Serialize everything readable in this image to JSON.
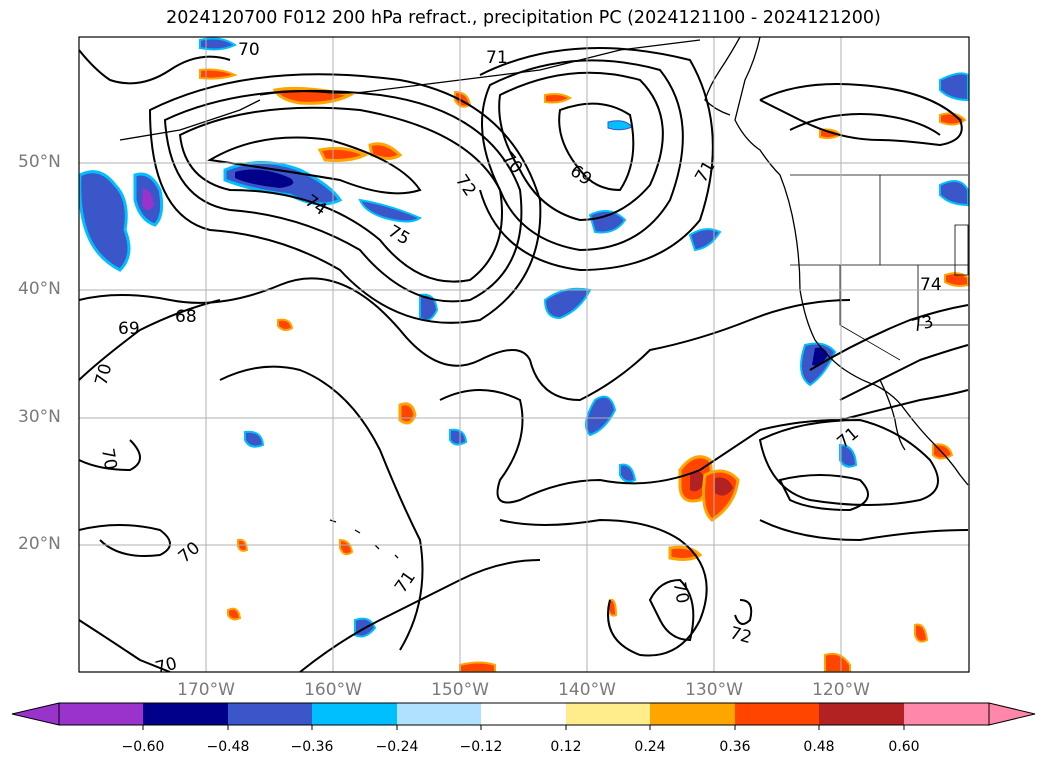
{
  "title": "2024120700 F012 200 hPa refract., precipitation PC (2024121100 - 2024121200)",
  "lat_labels": [
    "50°N",
    "40°N",
    "30°N",
    "20°N"
  ],
  "lon_labels": [
    "170°W",
    "160°W",
    "150°W",
    "140°W",
    "130°W",
    "120°W"
  ],
  "contour_labels": [
    "70",
    "71",
    "72",
    "70",
    "69",
    "71",
    "74",
    "75",
    "68",
    "69",
    "70",
    "70",
    "70",
    "71",
    "70",
    "72",
    "71",
    "74",
    "73",
    "70"
  ],
  "colorbar": {
    "colors": [
      "#9933cc",
      "#00008b",
      "#3a56c8",
      "#00bfff",
      "#b0e2ff",
      "#ffffff",
      "#ffec8b",
      "#ffa500",
      "#ff4500",
      "#b22222",
      "#ff88aa"
    ],
    "ticks": [
      "−0.60",
      "−0.48",
      "−0.36",
      "−0.24",
      "−0.12",
      "0.12",
      "0.24",
      "0.36",
      "0.48",
      "0.60"
    ]
  }
}
